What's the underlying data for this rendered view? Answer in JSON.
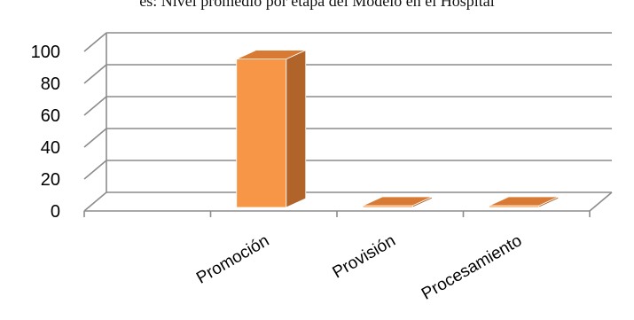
{
  "page": {
    "caption": "es: Nivel promedio por etapa del Modelo en el Hospital"
  },
  "chart_data": {
    "type": "bar",
    "categories": [
      "Promoción",
      "Provisión",
      "Procesamiento"
    ],
    "values": [
      93,
      1,
      0
    ],
    "ylim": [
      0,
      100
    ],
    "yticks": [
      0,
      20,
      40,
      60,
      80,
      100
    ],
    "grid": true,
    "legend": "none",
    "colors": {
      "bar_front": "#F79646",
      "bar_side": "#B0642A",
      "bar_top": "#D87A33",
      "grid": "#8C8C8C",
      "text": "#000000"
    }
  }
}
